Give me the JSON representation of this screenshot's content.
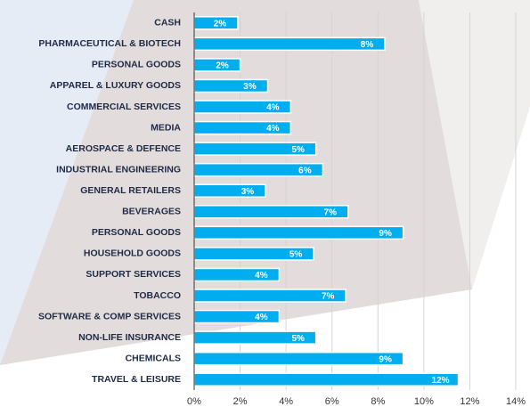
{
  "chart_data": {
    "type": "bar",
    "orientation": "horizontal",
    "categories": [
      "CASH",
      "PHARMACEUTICAL & BIOTECH",
      "PERSONAL GOODS",
      "APPAREL & LUXURY GOODS",
      "COMMERCIAL SERVICES",
      "MEDIA",
      "AEROSPACE & DEFENCE",
      "INDUSTRIAL ENGINEERING",
      "GENERAL RETAILERS",
      "BEVERAGES",
      "PERSONAL GOODS",
      "HOUSEHOLD GOODS",
      "SUPPORT SERVICES",
      "TOBACCO",
      "SOFTWARE & COMP SERVICES",
      "NON-LIFE INSURANCE",
      "CHEMICALS",
      "TRAVEL & LEISURE"
    ],
    "values": [
      1.9,
      8.3,
      2.0,
      3.2,
      4.2,
      4.2,
      5.3,
      5.6,
      3.1,
      6.7,
      9.1,
      5.2,
      3.7,
      6.6,
      3.7,
      5.3,
      9.1,
      11.5
    ],
    "value_labels": [
      "2%",
      "8%",
      "2%",
      "3%",
      "4%",
      "4%",
      "5%",
      "6%",
      "3%",
      "7%",
      "9%",
      "5%",
      "4%",
      "7%",
      "4%",
      "5%",
      "9%",
      "12%"
    ],
    "color": "#00aeef",
    "xlim": [
      0,
      14
    ],
    "xticks": [
      {
        "value": 0,
        "label": "0%"
      },
      {
        "value": 2,
        "label": "2%"
      },
      {
        "value": 4,
        "label": "4%"
      },
      {
        "value": 6,
        "label": "6%"
      },
      {
        "value": 8,
        "label": "8%"
      },
      {
        "value": 10,
        "label": "10%"
      },
      {
        "value": 12,
        "label": "12%"
      },
      {
        "value": 14,
        "label": "14%"
      }
    ],
    "grid": true
  }
}
